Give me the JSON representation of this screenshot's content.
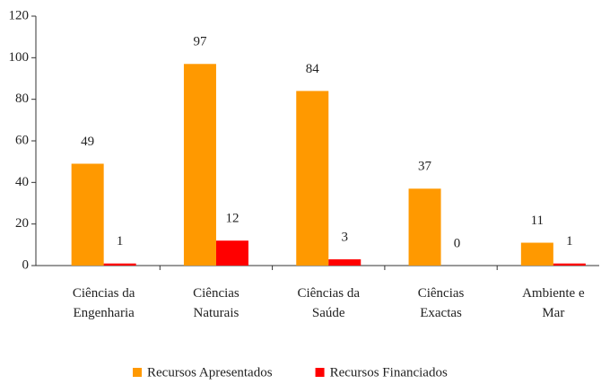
{
  "chart_data": {
    "type": "bar",
    "categories": [
      "Ciências da\nEngenharia",
      "Ciências\nNaturais",
      "Ciências da\nSaúde",
      "Ciências\nExactas",
      "Ambiente e\nMar"
    ],
    "series": [
      {
        "name": "Recursos Apresentados",
        "color": "#ff9900",
        "values": [
          49,
          97,
          84,
          37,
          11
        ]
      },
      {
        "name": "Recursos Financiados",
        "color": "#ff0000",
        "values": [
          1,
          12,
          3,
          0,
          1
        ]
      }
    ],
    "ylim": [
      0,
      120
    ],
    "yticks": [
      0,
      20,
      40,
      60,
      80,
      100,
      120
    ],
    "legend": "bottom"
  }
}
